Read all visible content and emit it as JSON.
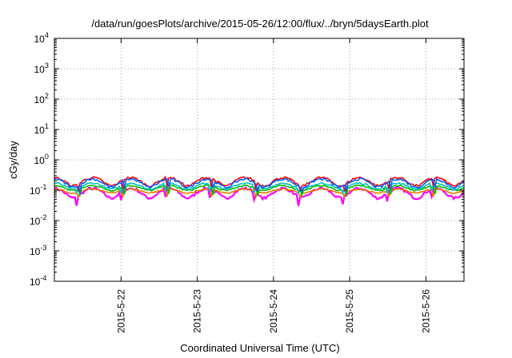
{
  "chart_data": {
    "type": "line",
    "title": "/data/run/goesPlots/archive/2015-05-26/12:00/flux/../bryn/5daysEarth.plot",
    "xlabel": "Coordinated Universal Time (UTC)",
    "ylabel": "cGy/day",
    "yscale": "log",
    "ylim": [
      0.0001,
      10000
    ],
    "xlim": [
      "2015-05-21 03:00",
      "2015-05-26 12:00"
    ],
    "grid": true,
    "x_ticks": [
      "2015-5-22",
      "2015-5-23",
      "2015-5-24",
      "2015-5-25",
      "2015-5-26"
    ],
    "y_ticks": [
      {
        "base": "10",
        "exp": "-4"
      },
      {
        "base": "10",
        "exp": "-3"
      },
      {
        "base": "10",
        "exp": "-2"
      },
      {
        "base": "10",
        "exp": "-1"
      },
      {
        "base": "10",
        "exp": "0"
      },
      {
        "base": "10",
        "exp": "1"
      },
      {
        "base": "10",
        "exp": "2"
      },
      {
        "base": "10",
        "exp": "3"
      },
      {
        "base": "10",
        "exp": "4"
      }
    ],
    "series": [
      {
        "color": "#ff00ff",
        "level": 0.085,
        "min_dip": 0.02,
        "variability": 0.35,
        "values_note": "approx"
      },
      {
        "color": "#e87800",
        "level": 0.095,
        "min_dip": 0.06,
        "variability": 0.15
      },
      {
        "color": "#00c000",
        "level": 0.12,
        "min_dip": 0.07,
        "variability": 0.18
      },
      {
        "color": "#00c0c0",
        "level": 0.14,
        "min_dip": 0.08,
        "variability": 0.22
      },
      {
        "color": "#ff0000",
        "level": 0.2,
        "min_dip": 0.1,
        "variability": 0.3
      },
      {
        "color": "#0060ff",
        "level": 0.18,
        "min_dip": 0.09,
        "variability": 0.3
      }
    ]
  }
}
